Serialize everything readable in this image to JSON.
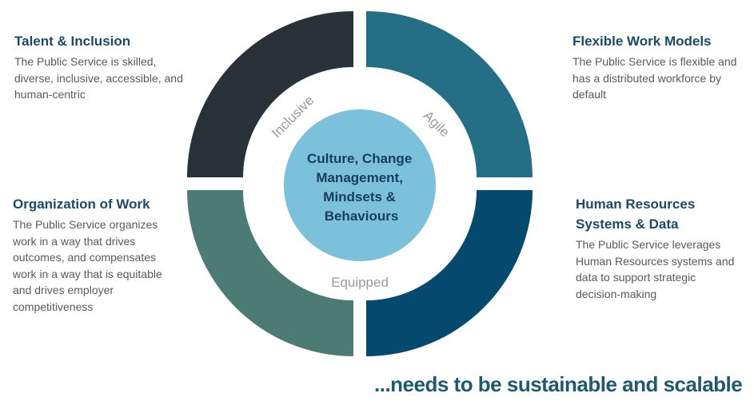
{
  "center_label": [
    "Culture, Change",
    "Management,",
    "Mindsets &",
    "Behaviours"
  ],
  "ring_labels": {
    "inclusive": "Inclusive",
    "agile": "Agile",
    "equipped": "Equipped"
  },
  "quadrants": {
    "top_left": {
      "title": "Talent & Inclusion",
      "body": "The Public Service is skilled, diverse, inclusive, accessible, and human-centric",
      "color": "#2a3138"
    },
    "top_right": {
      "title": "Flexible Work Models",
      "body": "The Public Service is flexible and has a distributed workforce by default",
      "color": "#246e86"
    },
    "bottom_left": {
      "title": "Organization of Work",
      "body": "The Public Service organizes work in a way that drives outcomes, and compensates work in a way that is equitable and drives employer competitiveness",
      "color": "#4c7b74"
    },
    "bottom_right": {
      "title": "Human Resources Systems & Data",
      "body": "The Public Service leverages Human Resources systems and data to support strategic decision-making",
      "color": "#044a6f"
    }
  },
  "center_color": "#7cc1db",
  "tagline": "...needs to be sustainable and scalable"
}
